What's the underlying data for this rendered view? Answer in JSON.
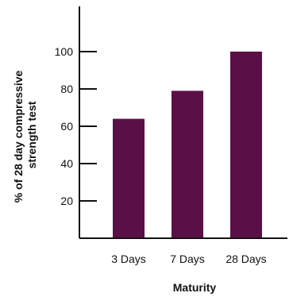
{
  "chart_data": {
    "type": "bar",
    "title": "",
    "xlabel": "Maturity",
    "ylabel_lines": [
      "% of 28 day compressive",
      "strength test"
    ],
    "categories": [
      "3 Days",
      "7 Days",
      "28 Days"
    ],
    "values": [
      64,
      79,
      100
    ],
    "yticks": [
      20,
      40,
      60,
      80,
      100
    ],
    "ylim": [
      0,
      120
    ],
    "grid": false,
    "legend": "none",
    "bar_color": "#5a1046",
    "axis_color": "#111111"
  }
}
